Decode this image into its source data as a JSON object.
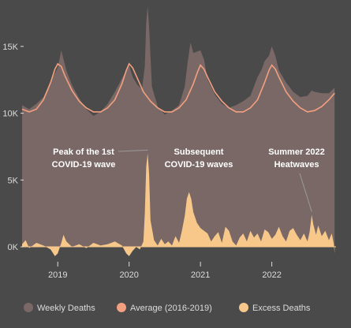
{
  "colors": {
    "background": "#4a4a4a",
    "weekly_deaths_fill": "#7a6866",
    "average_line": "#f2a07f",
    "excess_fill": "#f7c88a",
    "tick_text": "#dcdcdc",
    "annotation_text": "#ffffff"
  },
  "chart_data": {
    "type": "area",
    "title": "",
    "xlabel": "",
    "ylabel": "",
    "x_range": [
      "2018-07",
      "2022-12"
    ],
    "ylim": [
      -1000,
      18000
    ],
    "y_ticks": [
      {
        "value": 0,
        "label": "0K"
      },
      {
        "value": 5000,
        "label": "5K"
      },
      {
        "value": 10000,
        "label": "10K"
      },
      {
        "value": 15000,
        "label": "15K"
      }
    ],
    "x_ticks": [
      {
        "value": 2019.0,
        "label": "2019"
      },
      {
        "value": 2020.0,
        "label": "2020"
      },
      {
        "value": 2021.0,
        "label": "2021"
      },
      {
        "value": 2022.0,
        "label": "2022"
      }
    ],
    "grid": false,
    "legend_position": "bottom",
    "series": [
      {
        "name": "Weekly Deaths",
        "kind": "area",
        "points": [
          [
            2018.5,
            10600
          ],
          [
            2018.6,
            10300
          ],
          [
            2018.7,
            10700
          ],
          [
            2018.8,
            11200
          ],
          [
            2018.9,
            12400
          ],
          [
            2019.0,
            13400
          ],
          [
            2019.05,
            14700
          ],
          [
            2019.12,
            13200
          ],
          [
            2019.2,
            12100
          ],
          [
            2019.3,
            11100
          ],
          [
            2019.4,
            10300
          ],
          [
            2019.5,
            9800
          ],
          [
            2019.6,
            10100
          ],
          [
            2019.7,
            10700
          ],
          [
            2019.8,
            11600
          ],
          [
            2019.9,
            12600
          ],
          [
            2020.0,
            13600
          ],
          [
            2020.05,
            12700
          ],
          [
            2020.12,
            12100
          ],
          [
            2020.18,
            11800
          ],
          [
            2020.22,
            13500
          ],
          [
            2020.24,
            16800
          ],
          [
            2020.26,
            18000
          ],
          [
            2020.28,
            16500
          ],
          [
            2020.32,
            12000
          ],
          [
            2020.4,
            10500
          ],
          [
            2020.5,
            9900
          ],
          [
            2020.6,
            10200
          ],
          [
            2020.7,
            10600
          ],
          [
            2020.78,
            12000
          ],
          [
            2020.82,
            13800
          ],
          [
            2020.86,
            15300
          ],
          [
            2020.9,
            14500
          ],
          [
            2021.0,
            14700
          ],
          [
            2021.05,
            14000
          ],
          [
            2021.1,
            12500
          ],
          [
            2021.2,
            11400
          ],
          [
            2021.3,
            10700
          ],
          [
            2021.4,
            10400
          ],
          [
            2021.5,
            10600
          ],
          [
            2021.6,
            10900
          ],
          [
            2021.7,
            11300
          ],
          [
            2021.8,
            12700
          ],
          [
            2021.86,
            13300
          ],
          [
            2021.9,
            13900
          ],
          [
            2021.96,
            14300
          ],
          [
            2022.0,
            15000
          ],
          [
            2022.05,
            14300
          ],
          [
            2022.1,
            13200
          ],
          [
            2022.2,
            12300
          ],
          [
            2022.3,
            11600
          ],
          [
            2022.4,
            11200
          ],
          [
            2022.5,
            11300
          ],
          [
            2022.56,
            11700
          ],
          [
            2022.6,
            11600
          ],
          [
            2022.7,
            11500
          ],
          [
            2022.8,
            11500
          ],
          [
            2022.88,
            11900
          ]
        ]
      },
      {
        "name": "Average (2016-2019)",
        "kind": "line",
        "points": [
          [
            2018.5,
            10300
          ],
          [
            2018.6,
            10100
          ],
          [
            2018.7,
            10300
          ],
          [
            2018.8,
            11000
          ],
          [
            2018.9,
            12300
          ],
          [
            2018.96,
            13300
          ],
          [
            2019.0,
            13700
          ],
          [
            2019.05,
            13500
          ],
          [
            2019.1,
            12800
          ],
          [
            2019.2,
            11700
          ],
          [
            2019.3,
            10900
          ],
          [
            2019.4,
            10400
          ],
          [
            2019.5,
            10100
          ],
          [
            2019.6,
            10100
          ],
          [
            2019.7,
            10400
          ],
          [
            2019.8,
            11000
          ],
          [
            2019.9,
            12200
          ],
          [
            2019.96,
            13200
          ],
          [
            2020.0,
            13700
          ],
          [
            2020.05,
            13400
          ],
          [
            2020.1,
            12800
          ],
          [
            2020.2,
            11600
          ],
          [
            2020.3,
            10900
          ],
          [
            2020.4,
            10400
          ],
          [
            2020.5,
            10100
          ],
          [
            2020.6,
            10100
          ],
          [
            2020.7,
            10400
          ],
          [
            2020.8,
            11000
          ],
          [
            2020.9,
            12200
          ],
          [
            2020.96,
            13100
          ],
          [
            2021.0,
            13600
          ],
          [
            2021.05,
            13300
          ],
          [
            2021.1,
            12700
          ],
          [
            2021.2,
            11600
          ],
          [
            2021.3,
            10900
          ],
          [
            2021.4,
            10400
          ],
          [
            2021.5,
            10100
          ],
          [
            2021.6,
            10100
          ],
          [
            2021.7,
            10400
          ],
          [
            2021.8,
            11000
          ],
          [
            2021.9,
            12300
          ],
          [
            2021.96,
            13200
          ],
          [
            2022.0,
            13600
          ],
          [
            2022.05,
            13300
          ],
          [
            2022.1,
            12700
          ],
          [
            2022.2,
            11600
          ],
          [
            2022.3,
            10900
          ],
          [
            2022.4,
            10400
          ],
          [
            2022.5,
            10100
          ],
          [
            2022.6,
            10200
          ],
          [
            2022.7,
            10500
          ],
          [
            2022.8,
            11000
          ],
          [
            2022.88,
            11500
          ]
        ]
      },
      {
        "name": "Excess Deaths",
        "kind": "area",
        "points": [
          [
            2018.5,
            200
          ],
          [
            2018.55,
            500
          ],
          [
            2018.6,
            -100
          ],
          [
            2018.7,
            300
          ],
          [
            2018.8,
            100
          ],
          [
            2018.9,
            -200
          ],
          [
            2018.96,
            -700
          ],
          [
            2019.0,
            -500
          ],
          [
            2019.05,
            300
          ],
          [
            2019.08,
            900
          ],
          [
            2019.12,
            400
          ],
          [
            2019.2,
            0
          ],
          [
            2019.3,
            200
          ],
          [
            2019.4,
            -100
          ],
          [
            2019.5,
            300
          ],
          [
            2019.6,
            100
          ],
          [
            2019.7,
            200
          ],
          [
            2019.8,
            400
          ],
          [
            2019.9,
            100
          ],
          [
            2019.96,
            -500
          ],
          [
            2020.0,
            -700
          ],
          [
            2020.05,
            -300
          ],
          [
            2020.1,
            0
          ],
          [
            2020.15,
            -200
          ],
          [
            2020.2,
            400
          ],
          [
            2020.22,
            2500
          ],
          [
            2020.24,
            6000
          ],
          [
            2020.26,
            7000
          ],
          [
            2020.28,
            5500
          ],
          [
            2020.3,
            2000
          ],
          [
            2020.35,
            500
          ],
          [
            2020.4,
            100
          ],
          [
            2020.45,
            600
          ],
          [
            2020.5,
            200
          ],
          [
            2020.55,
            400
          ],
          [
            2020.6,
            100
          ],
          [
            2020.65,
            800
          ],
          [
            2020.7,
            300
          ],
          [
            2020.74,
            1200
          ],
          [
            2020.78,
            2300
          ],
          [
            2020.81,
            3600
          ],
          [
            2020.84,
            4100
          ],
          [
            2020.87,
            3600
          ],
          [
            2020.9,
            2600
          ],
          [
            2020.95,
            1800
          ],
          [
            2021.0,
            1400
          ],
          [
            2021.05,
            1200
          ],
          [
            2021.1,
            1000
          ],
          [
            2021.15,
            400
          ],
          [
            2021.2,
            800
          ],
          [
            2021.25,
            1100
          ],
          [
            2021.3,
            300
          ],
          [
            2021.35,
            1500
          ],
          [
            2021.4,
            1200
          ],
          [
            2021.45,
            400
          ],
          [
            2021.5,
            100
          ],
          [
            2021.55,
            700
          ],
          [
            2021.6,
            1000
          ],
          [
            2021.65,
            400
          ],
          [
            2021.7,
            1200
          ],
          [
            2021.75,
            700
          ],
          [
            2021.8,
            1000
          ],
          [
            2021.85,
            400
          ],
          [
            2021.9,
            1300
          ],
          [
            2021.95,
            1100
          ],
          [
            2022.0,
            600
          ],
          [
            2022.05,
            900
          ],
          [
            2022.1,
            1500
          ],
          [
            2022.15,
            800
          ],
          [
            2022.2,
            400
          ],
          [
            2022.25,
            1200
          ],
          [
            2022.3,
            1400
          ],
          [
            2022.35,
            900
          ],
          [
            2022.4,
            500
          ],
          [
            2022.45,
            1000
          ],
          [
            2022.5,
            400
          ],
          [
            2022.53,
            1100
          ],
          [
            2022.56,
            2400
          ],
          [
            2022.58,
            1700
          ],
          [
            2022.62,
            900
          ],
          [
            2022.65,
            1600
          ],
          [
            2022.7,
            800
          ],
          [
            2022.75,
            1200
          ],
          [
            2022.8,
            500
          ],
          [
            2022.84,
            1000
          ],
          [
            2022.87,
            200
          ],
          [
            2022.88,
            -500
          ]
        ]
      }
    ],
    "annotations": [
      {
        "name": "covid-first-wave",
        "lines": [
          "Peak of the 1st",
          "COVID-19 wave"
        ],
        "target": [
          2020.26,
          7000
        ]
      },
      {
        "name": "covid-subsequent-waves",
        "lines": [
          "Subsequent",
          "COVID-19 waves"
        ],
        "target": null
      },
      {
        "name": "summer-heatwaves",
        "lines": [
          "Summer 2022",
          "Heatwaves"
        ],
        "target": [
          2022.56,
          2400
        ]
      }
    ]
  }
}
